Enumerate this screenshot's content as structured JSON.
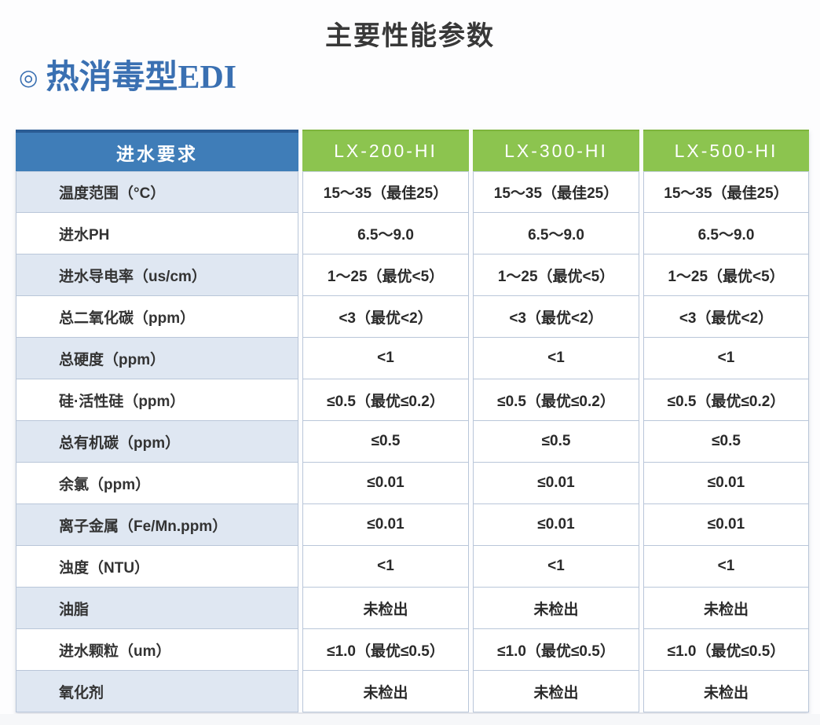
{
  "page": {
    "title": "主要性能参数",
    "section_bullet": "◎",
    "section_title": "热消毒型EDI"
  },
  "table": {
    "header": {
      "label_col": "进水要求",
      "models": [
        "LX-200-HI",
        "LX-300-HI",
        "LX-500-HI"
      ]
    },
    "rows": [
      {
        "label": "温度范围（°C）",
        "values": [
          "15～35（最佳25）",
          "15～35（最佳25）",
          "15～35（最佳25）"
        ]
      },
      {
        "label": "进水PH",
        "values": [
          "6.5～9.0",
          "6.5～9.0",
          "6.5～9.0"
        ]
      },
      {
        "label": "进水导电率（us/cm）",
        "values": [
          "1～25（最优<5）",
          "1～25（最优<5）",
          "1～25（最优<5）"
        ]
      },
      {
        "label": "总二氧化碳（ppm）",
        "values": [
          "<3（最优<2）",
          "<3（最优<2）",
          "<3（最优<2）"
        ]
      },
      {
        "label": "总硬度（ppm）",
        "values": [
          "<1",
          "<1",
          "<1"
        ]
      },
      {
        "label": "硅·活性硅（ppm）",
        "values": [
          "≤0.5（最优≤0.2）",
          "≤0.5（最优≤0.2）",
          "≤0.5（最优≤0.2）"
        ]
      },
      {
        "label": "总有机碳（ppm）",
        "values": [
          "≤0.5",
          "≤0.5",
          "≤0.5"
        ]
      },
      {
        "label": "余氯（ppm）",
        "values": [
          "≤0.01",
          "≤0.01",
          "≤0.01"
        ]
      },
      {
        "label": "离子金属（Fe/Mn.ppm）",
        "values": [
          "≤0.01",
          "≤0.01",
          "≤0.01"
        ]
      },
      {
        "label": "浊度（NTU）",
        "values": [
          "<1",
          "<1",
          "<1"
        ]
      },
      {
        "label": "油脂",
        "values": [
          "未检出",
          "未检出",
          "未检出"
        ]
      },
      {
        "label": "进水颗粒（um）",
        "values": [
          "≤1.0（最优≤0.5）",
          "≤1.0（最优≤0.5）",
          "≤1.0（最优≤0.5）"
        ]
      },
      {
        "label": "氧化剂",
        "values": [
          "未检出",
          "未检出",
          "未检出"
        ]
      }
    ]
  },
  "colors": {
    "header_blue": "#3f7db8",
    "header_blue_top_border": "#2b5c94",
    "header_green": "#8cc44f",
    "header_green_top_border": "#7db43c",
    "row_tint": "#dfe7f2",
    "grid_line": "#b9c6d9",
    "section_title_blue": "#3a70b2",
    "title_text": "#383838"
  }
}
